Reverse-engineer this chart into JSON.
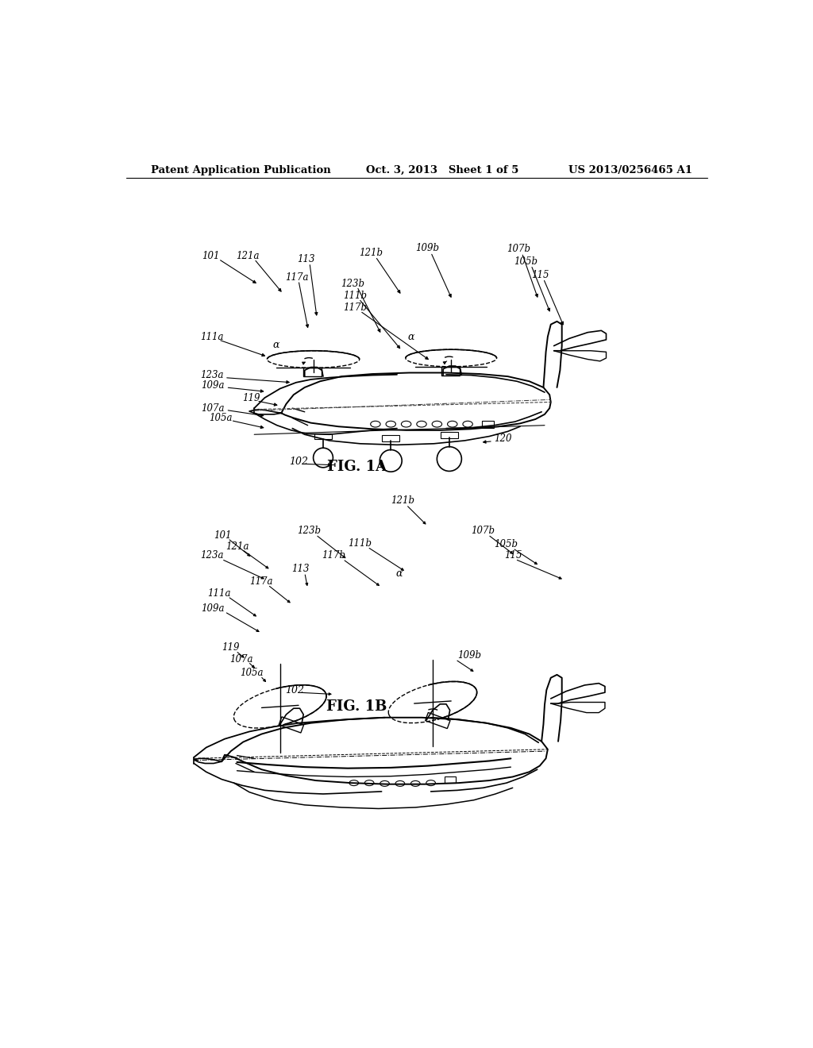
{
  "bg_color": "#ffffff",
  "header_left": "Patent Application Publication",
  "header_mid": "Oct. 3, 2013   Sheet 1 of 5",
  "header_right": "US 2013/0256465 A1",
  "fig1a_caption": "FIG. 1A",
  "fig1b_caption": "FIG. 1B"
}
